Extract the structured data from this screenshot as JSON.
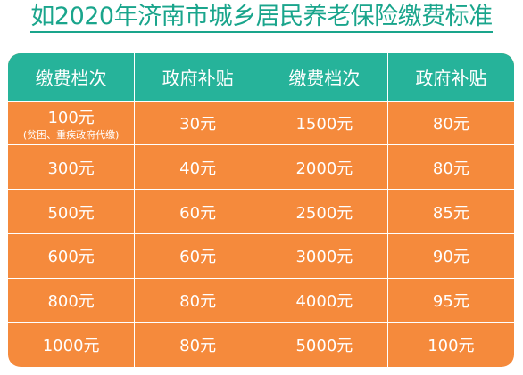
{
  "title": "如2020年济南市城乡居民养老保险缴费标准",
  "headers": [
    "缴费档次",
    "政府补贴",
    "缴费档次",
    "政府补贴"
  ],
  "rows": [
    {
      "tier1": "100元",
      "tier1_note": "(贫困、重疾政府代缴)",
      "sub1": "30元",
      "tier2": "1500元",
      "sub2": "80元"
    },
    {
      "tier1": "300元",
      "tier1_note": "",
      "sub1": "40元",
      "tier2": "2000元",
      "sub2": "80元"
    },
    {
      "tier1": "500元",
      "tier1_note": "",
      "sub1": "60元",
      "tier2": "2500元",
      "sub2": "85元"
    },
    {
      "tier1": "600元",
      "tier1_note": "",
      "sub1": "60元",
      "tier2": "3000元",
      "sub2": "90元"
    },
    {
      "tier1": "800元",
      "tier1_note": "",
      "sub1": "80元",
      "tier2": "4000元",
      "sub2": "95元"
    },
    {
      "tier1": "1000元",
      "tier1_note": "",
      "sub1": "80元",
      "tier2": "5000元",
      "sub2": "100元"
    }
  ],
  "colors": {
    "header_bg": "#26b39a",
    "body_bg": "#f58a3c",
    "title": "#1aa58c"
  }
}
